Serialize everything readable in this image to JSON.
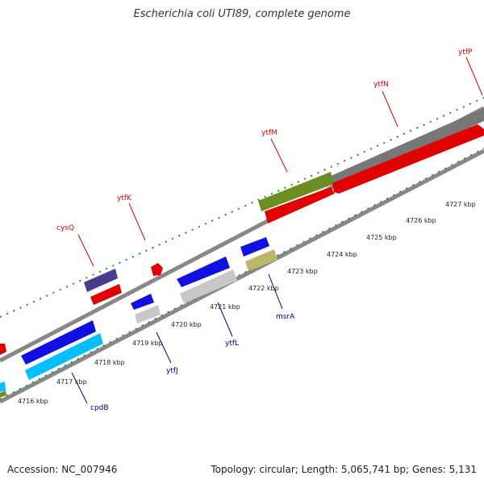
{
  "title": "Escherichia coli UTI89, complete genome",
  "footer": {
    "accession": "Accession: NC_007946",
    "stats": "Topology: circular; Length: 5,065,741 bp; Genes: 5,131"
  },
  "scale_labels": [
    "4716 kbp",
    "4717 kbp",
    "4718 kbp",
    "4719 kbp",
    "4720 kbp",
    "4721 kbp",
    "4722 kbp",
    "4723 kbp",
    "4724 kbp",
    "4725 kbp",
    "4726 kbp",
    "4727 kbp"
  ],
  "genes_top": [
    {
      "name": "cysQ",
      "color": "#e00000"
    },
    {
      "name": "ytfK",
      "color": "#e00000"
    },
    {
      "name": "ytfM",
      "color": "#e00000"
    },
    {
      "name": "ytfN",
      "color": "#e00000"
    },
    {
      "name": "ytfP",
      "color": "#e00000"
    }
  ],
  "genes_bottom": [
    {
      "name": "cpdB",
      "color": "#00008b"
    },
    {
      "name": "ytfJ",
      "color": "#00008b"
    },
    {
      "name": "ytfL",
      "color": "#00008b"
    },
    {
      "name": "msrA",
      "color": "#00008b"
    }
  ]
}
